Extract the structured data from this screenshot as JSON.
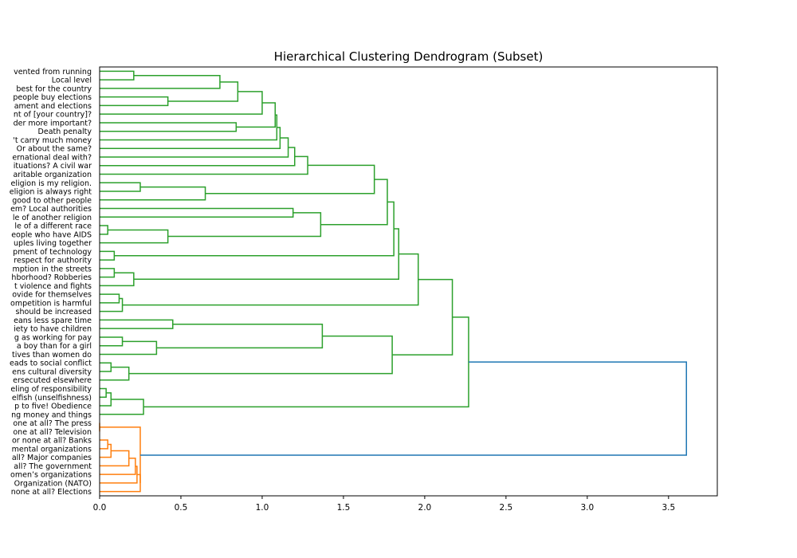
{
  "chart_data": {
    "type": "dendrogram",
    "title": "Hierarchical Clustering Dendrogram (Subset)",
    "xlabel": "",
    "ylabel": "",
    "xlim": [
      0,
      3.8
    ],
    "xticks": [
      0.0,
      0.5,
      1.0,
      1.5,
      2.0,
      2.5,
      3.0,
      3.5
    ],
    "xtick_labels": [
      "0.0",
      "0.5",
      "1.0",
      "1.5",
      "2.0",
      "2.5",
      "3.0",
      "3.5"
    ],
    "grid": false,
    "colors": {
      "cluster1": "#2ca02c",
      "cluster2": "#ff7f0e",
      "root": "#1f77b4"
    },
    "leaves": [
      "vented from running",
      "Local level",
      "best for the country",
      "people buy elections",
      "ament and elections",
      "nt of [your country]?",
      "der more important?",
      "Death penalty",
      "'t carry much money",
      "Or about the same?",
      "ernational deal with?",
      "ituations? A civil war",
      "aritable organization",
      "eligion is my religion.",
      "eligion is always right",
      "good to other people",
      "em? Local authorities",
      "le of another religion",
      "le of a different race",
      "eople who have AIDS",
      "uples living together",
      "pment of technology",
      "respect for authority",
      "mption in the streets",
      "hborhood? Robberies",
      "t violence and fights",
      "ovide for themselves",
      "ompetition is harmful",
      "should be increased",
      "eans less spare time",
      "iety to have children",
      "g as working for pay",
      "a boy than for a girl",
      "tives than women do",
      "eads to social conflict",
      "ens cultural diversity",
      "ersecuted elsewhere",
      "eling of responsibility",
      "elfish (unselfishness)",
      "p to five! Obedience",
      "ng money and things",
      "one at all? The press",
      "one at all? Television",
      "or none at all? Banks",
      "mental organizations",
      "all? Major companies",
      "all? The government",
      "omen’s organizations",
      "Organization (NATO)",
      "none at all? Elections"
    ],
    "links": [
      {
        "a": 0,
        "b": 1,
        "h": 0.21,
        "color": "cluster1"
      },
      {
        "a": "L0",
        "b": 2,
        "h": 0.74,
        "color": "cluster1"
      },
      {
        "a": 3,
        "b": 4,
        "h": 0.42,
        "color": "cluster1"
      },
      {
        "a": "L1",
        "b": "L2",
        "h": 0.85,
        "color": "cluster1"
      },
      {
        "a": "L3",
        "b": 5,
        "h": 1.0,
        "color": "cluster1"
      },
      {
        "a": 6,
        "b": 7,
        "h": 0.84,
        "color": "cluster1"
      },
      {
        "a": "L4",
        "b": "L5",
        "h": 1.08,
        "color": "cluster1"
      },
      {
        "a": "L6",
        "b": 8,
        "h": 1.09,
        "color": "cluster1"
      },
      {
        "a": "L7",
        "b": 9,
        "h": 1.11,
        "color": "cluster1"
      },
      {
        "a": "L8",
        "b": 10,
        "h": 1.16,
        "color": "cluster1"
      },
      {
        "a": "L9",
        "b": 11,
        "h": 1.2,
        "color": "cluster1"
      },
      {
        "a": "L10",
        "b": 12,
        "h": 1.28,
        "color": "cluster1"
      },
      {
        "a": 13,
        "b": 14,
        "h": 0.25,
        "color": "cluster1"
      },
      {
        "a": "L12",
        "b": 15,
        "h": 0.65,
        "color": "cluster1"
      },
      {
        "a": "L11",
        "b": "L13",
        "h": 1.69,
        "color": "cluster1"
      },
      {
        "a": 16,
        "b": 17,
        "h": 1.19,
        "color": "cluster1"
      },
      {
        "a": 18,
        "b": 19,
        "h": 0.05,
        "color": "cluster1"
      },
      {
        "a": "L16",
        "b": 20,
        "h": 0.42,
        "color": "cluster1"
      },
      {
        "a": "L15",
        "b": "L17",
        "h": 1.36,
        "color": "cluster1"
      },
      {
        "a": "L14",
        "b": "L18",
        "h": 1.77,
        "color": "cluster1"
      },
      {
        "a": 21,
        "b": 22,
        "h": 0.09,
        "color": "cluster1"
      },
      {
        "a": "L19",
        "b": "L20",
        "h": 1.81,
        "color": "cluster1"
      },
      {
        "a": 23,
        "b": 24,
        "h": 0.09,
        "color": "cluster1"
      },
      {
        "a": "L22",
        "b": 25,
        "h": 0.21,
        "color": "cluster1"
      },
      {
        "a": "L21",
        "b": "L23",
        "h": 1.84,
        "color": "cluster1"
      },
      {
        "a": 26,
        "b": 27,
        "h": 0.12,
        "color": "cluster1"
      },
      {
        "a": "L25",
        "b": 28,
        "h": 0.14,
        "color": "cluster1"
      },
      {
        "a": "L24",
        "b": "L26",
        "h": 1.96,
        "color": "cluster1"
      },
      {
        "a": 29,
        "b": 30,
        "h": 0.45,
        "color": "cluster1"
      },
      {
        "a": 31,
        "b": 32,
        "h": 0.14,
        "color": "cluster1"
      },
      {
        "a": "L29",
        "b": 33,
        "h": 0.35,
        "color": "cluster1"
      },
      {
        "a": "L28",
        "b": "L30",
        "h": 1.37,
        "color": "cluster1"
      },
      {
        "a": 34,
        "b": 35,
        "h": 0.07,
        "color": "cluster1"
      },
      {
        "a": "L32",
        "b": 36,
        "h": 0.18,
        "color": "cluster1"
      },
      {
        "a": "L31",
        "b": "L33",
        "h": 1.8,
        "color": "cluster1"
      },
      {
        "a": "L27",
        "b": "L34",
        "h": 2.17,
        "color": "cluster1"
      },
      {
        "a": 37,
        "b": 38,
        "h": 0.04,
        "color": "cluster1"
      },
      {
        "a": "L36",
        "b": 39,
        "h": 0.07,
        "color": "cluster1"
      },
      {
        "a": "L37",
        "b": 40,
        "h": 0.27,
        "color": "cluster1"
      },
      {
        "a": "L35",
        "b": "L38",
        "h": 2.27,
        "color": "cluster1"
      },
      {
        "a": 41,
        "b": 42,
        "h": 0.0,
        "color": "cluster2"
      },
      {
        "a": 43,
        "b": 44,
        "h": 0.05,
        "color": "cluster2"
      },
      {
        "a": "L41",
        "b": 45,
        "h": 0.07,
        "color": "cluster2"
      },
      {
        "a": "L42",
        "b": 46,
        "h": 0.18,
        "color": "cluster2"
      },
      {
        "a": "L43",
        "b": 47,
        "h": 0.22,
        "color": "cluster2"
      },
      {
        "a": "L44",
        "b": 48,
        "h": 0.23,
        "color": "cluster2"
      },
      {
        "a": "L45",
        "b": 49,
        "h": 0.25,
        "color": "cluster2"
      },
      {
        "a": "L46",
        "b": "L40",
        "h": 0.25,
        "color": "cluster2"
      },
      {
        "a": "L39",
        "b": "L47",
        "h": 3.61,
        "color": "root"
      }
    ]
  }
}
